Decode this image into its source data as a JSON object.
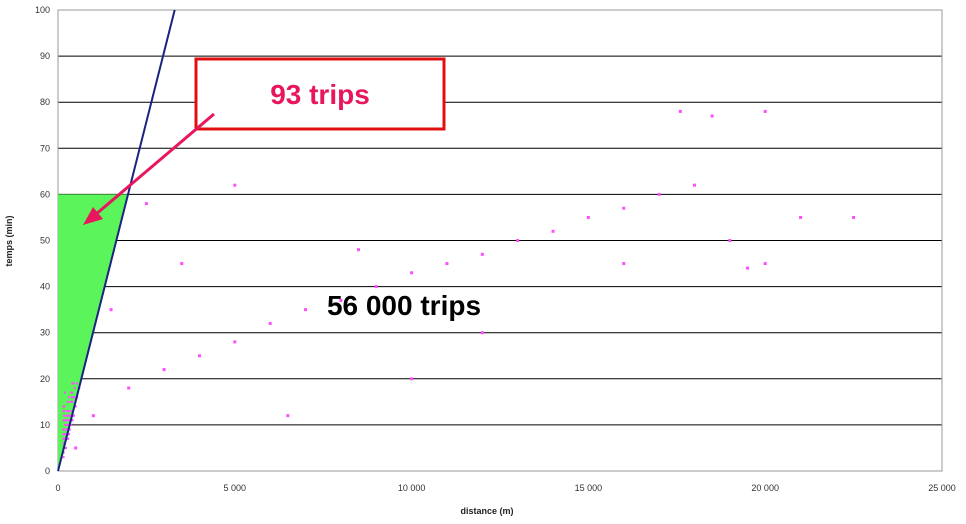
{
  "chart_data": {
    "type": "scatter",
    "xlabel": "distance (m)",
    "ylabel": "temps (min)",
    "xlim": [
      0,
      25000
    ],
    "ylim": [
      0,
      100
    ],
    "xticks": [
      "0",
      "5 000",
      "10 000",
      "15 000",
      "20 000",
      "25 000"
    ],
    "yticks": [
      "0",
      "10",
      "20",
      "30",
      "40",
      "50",
      "60",
      "70",
      "80",
      "90",
      "100"
    ],
    "grid": "horizontal",
    "scatter_color": "#ff4dff",
    "scatter_points_approx": 56000,
    "sample_points": [
      [
        500,
        5
      ],
      [
        1000,
        12
      ],
      [
        2000,
        18
      ],
      [
        3000,
        22
      ],
      [
        4000,
        25
      ],
      [
        5000,
        28
      ],
      [
        6000,
        32
      ],
      [
        7000,
        35
      ],
      [
        8000,
        37
      ],
      [
        9000,
        40
      ],
      [
        10000,
        43
      ],
      [
        11000,
        45
      ],
      [
        12000,
        47
      ],
      [
        13000,
        50
      ],
      [
        14000,
        52
      ],
      [
        15000,
        55
      ],
      [
        16000,
        57
      ],
      [
        17000,
        60
      ],
      [
        18000,
        62
      ],
      [
        19000,
        50
      ],
      [
        20000,
        45
      ],
      [
        21000,
        55
      ],
      [
        22500,
        55
      ],
      [
        20000,
        78
      ],
      [
        18500,
        77
      ],
      [
        17600,
        78
      ],
      [
        5000,
        62
      ],
      [
        2500,
        58
      ],
      [
        8500,
        48
      ],
      [
        12000,
        30
      ],
      [
        16000,
        45
      ],
      [
        19500,
        44
      ],
      [
        1500,
        35
      ],
      [
        3500,
        45
      ],
      [
        6500,
        12
      ],
      [
        10000,
        20
      ]
    ],
    "reference_line": {
      "x": [
        0,
        3300
      ],
      "y": [
        0,
        100
      ],
      "color": "#1a237e"
    },
    "shaded_region": {
      "x": [
        0,
        1980
      ],
      "y": [
        0,
        60
      ],
      "color": "#5bf55b"
    },
    "annotations": {
      "small_group": {
        "text": "93 trips",
        "color": "#e8175d",
        "border_color": "#e01010"
      },
      "large_group": {
        "text": "56 000 trips",
        "color": "#000000"
      }
    }
  }
}
